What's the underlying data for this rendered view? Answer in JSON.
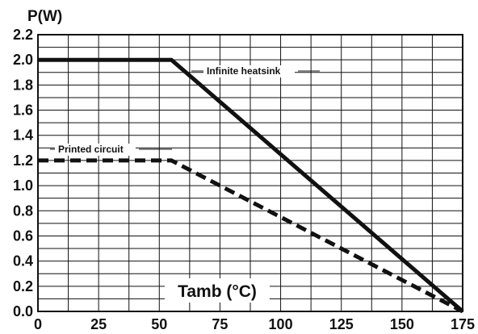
{
  "chart_data": {
    "type": "line",
    "title": "",
    "xlabel": "Tamb (°C)",
    "ylabel": "P(W)",
    "xlim": [
      0,
      175
    ],
    "ylim": [
      0,
      2.2
    ],
    "xticks": [
      0,
      25,
      50,
      75,
      100,
      125,
      150,
      175
    ],
    "xtick_labels": [
      "0",
      "25",
      "50",
      "75",
      "100",
      "125",
      "150",
      "175"
    ],
    "yticks": [
      0.0,
      0.2,
      0.4,
      0.6,
      0.8,
      1.0,
      1.2,
      1.4,
      1.6,
      1.8,
      2.0,
      2.2
    ],
    "ytick_labels": [
      "0.0",
      "0.2",
      "0.4",
      "0.6",
      "0.8",
      "1.0",
      "1.2",
      "1.4",
      "1.6",
      "1.8",
      "2.0",
      "2.2"
    ],
    "grid": true,
    "legend": "none",
    "series": [
      {
        "name": "Infinite heatsink",
        "style": "solid",
        "color": "#111111",
        "points": [
          [
            0,
            2.0
          ],
          [
            55,
            2.0
          ],
          [
            175,
            0.0
          ]
        ]
      },
      {
        "name": "Printed circuit",
        "style": "dashed",
        "color": "#111111",
        "points": [
          [
            0,
            1.2
          ],
          [
            55,
            1.2
          ],
          [
            175,
            0.0
          ]
        ]
      }
    ]
  }
}
